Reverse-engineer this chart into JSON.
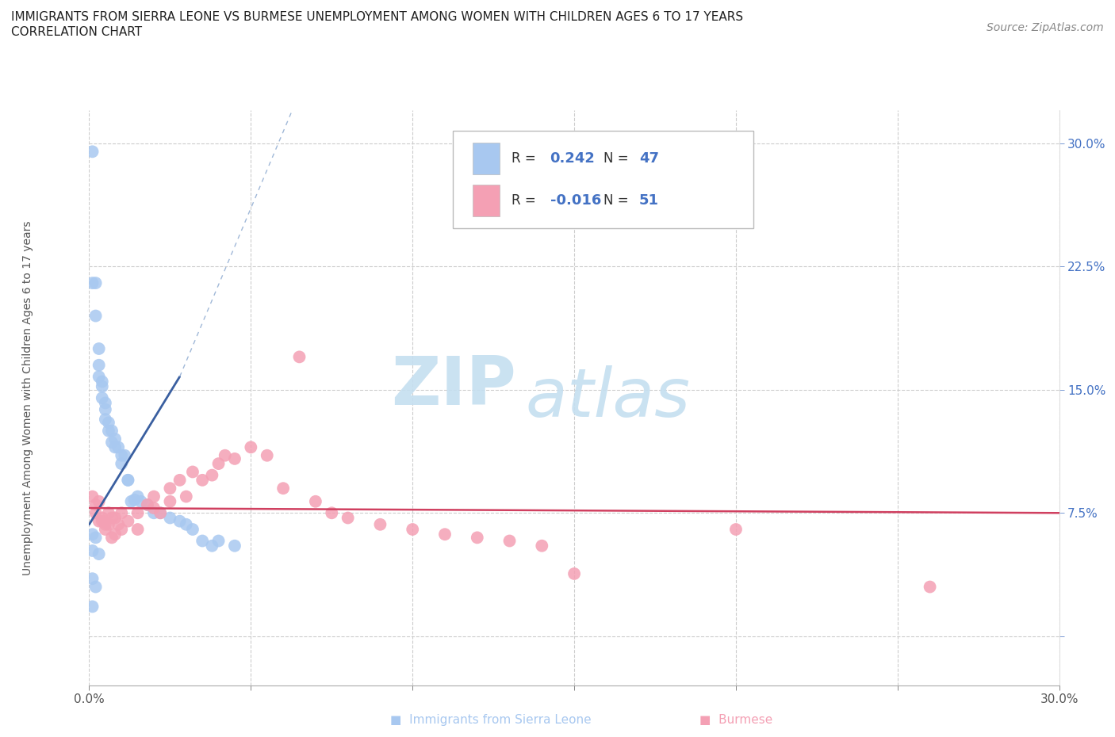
{
  "title_line1": "IMMIGRANTS FROM SIERRA LEONE VS BURMESE UNEMPLOYMENT AMONG WOMEN WITH CHILDREN AGES 6 TO 17 YEARS",
  "title_line2": "CORRELATION CHART",
  "source_text": "Source: ZipAtlas.com",
  "ylabel": "Unemployment Among Women with Children Ages 6 to 17 years",
  "xlim": [
    0.0,
    0.3
  ],
  "ylim": [
    -0.03,
    0.32
  ],
  "xtick_vals": [
    0.0,
    0.05,
    0.1,
    0.15,
    0.2,
    0.25,
    0.3
  ],
  "xtick_labels": [
    "0.0%",
    "",
    "",
    "",
    "",
    "",
    "30.0%"
  ],
  "ytick_vals": [
    0.0,
    0.075,
    0.15,
    0.225,
    0.3
  ],
  "ytick_labels": [
    "",
    "7.5%",
    "15.0%",
    "22.5%",
    "30.0%"
  ],
  "grid_color": "#cccccc",
  "background_color": "#ffffff",
  "watermark_zip": "ZIP",
  "watermark_atlas": "atlas",
  "watermark_color_zip": "#c5dff0",
  "watermark_color_atlas": "#c5dff0",
  "sierra_leone_R": 0.242,
  "sierra_leone_N": 47,
  "burmese_R": -0.016,
  "burmese_N": 51,
  "sierra_leone_color": "#a8c8f0",
  "sierra_leone_line_color": "#3a5fa0",
  "sierra_leone_dash_color": "#a0b8d8",
  "burmese_color": "#f4a0b4",
  "burmese_line_color": "#d04060",
  "sl_x": [
    0.001,
    0.001,
    0.002,
    0.002,
    0.003,
    0.003,
    0.003,
    0.004,
    0.004,
    0.004,
    0.005,
    0.005,
    0.005,
    0.006,
    0.006,
    0.007,
    0.007,
    0.008,
    0.008,
    0.009,
    0.01,
    0.01,
    0.011,
    0.012,
    0.012,
    0.013,
    0.014,
    0.015,
    0.016,
    0.018,
    0.02,
    0.022,
    0.025,
    0.028,
    0.03,
    0.032,
    0.035,
    0.038,
    0.04,
    0.045,
    0.001,
    0.002,
    0.001,
    0.003,
    0.001,
    0.002,
    0.001
  ],
  "sl_y": [
    0.295,
    0.215,
    0.215,
    0.195,
    0.175,
    0.165,
    0.158,
    0.155,
    0.152,
    0.145,
    0.142,
    0.138,
    0.132,
    0.13,
    0.125,
    0.125,
    0.118,
    0.12,
    0.115,
    0.115,
    0.11,
    0.105,
    0.11,
    0.095,
    0.095,
    0.082,
    0.083,
    0.085,
    0.082,
    0.08,
    0.075,
    0.075,
    0.072,
    0.07,
    0.068,
    0.065,
    0.058,
    0.055,
    0.058,
    0.055,
    0.062,
    0.06,
    0.052,
    0.05,
    0.035,
    0.03,
    0.018
  ],
  "bm_x": [
    0.001,
    0.002,
    0.002,
    0.003,
    0.003,
    0.004,
    0.004,
    0.005,
    0.005,
    0.006,
    0.006,
    0.007,
    0.007,
    0.008,
    0.008,
    0.009,
    0.01,
    0.01,
    0.012,
    0.015,
    0.015,
    0.018,
    0.02,
    0.02,
    0.022,
    0.025,
    0.025,
    0.028,
    0.03,
    0.032,
    0.035,
    0.038,
    0.04,
    0.042,
    0.045,
    0.05,
    0.055,
    0.06,
    0.065,
    0.07,
    0.075,
    0.08,
    0.09,
    0.1,
    0.11,
    0.12,
    0.13,
    0.14,
    0.15,
    0.2,
    0.26
  ],
  "bm_y": [
    0.085,
    0.075,
    0.08,
    0.082,
    0.07,
    0.07,
    0.072,
    0.068,
    0.065,
    0.075,
    0.068,
    0.072,
    0.06,
    0.072,
    0.062,
    0.068,
    0.075,
    0.065,
    0.07,
    0.075,
    0.065,
    0.08,
    0.078,
    0.085,
    0.075,
    0.09,
    0.082,
    0.095,
    0.085,
    0.1,
    0.095,
    0.098,
    0.105,
    0.11,
    0.108,
    0.115,
    0.11,
    0.09,
    0.17,
    0.082,
    0.075,
    0.072,
    0.068,
    0.065,
    0.062,
    0.06,
    0.058,
    0.055,
    0.038,
    0.065,
    0.03
  ]
}
